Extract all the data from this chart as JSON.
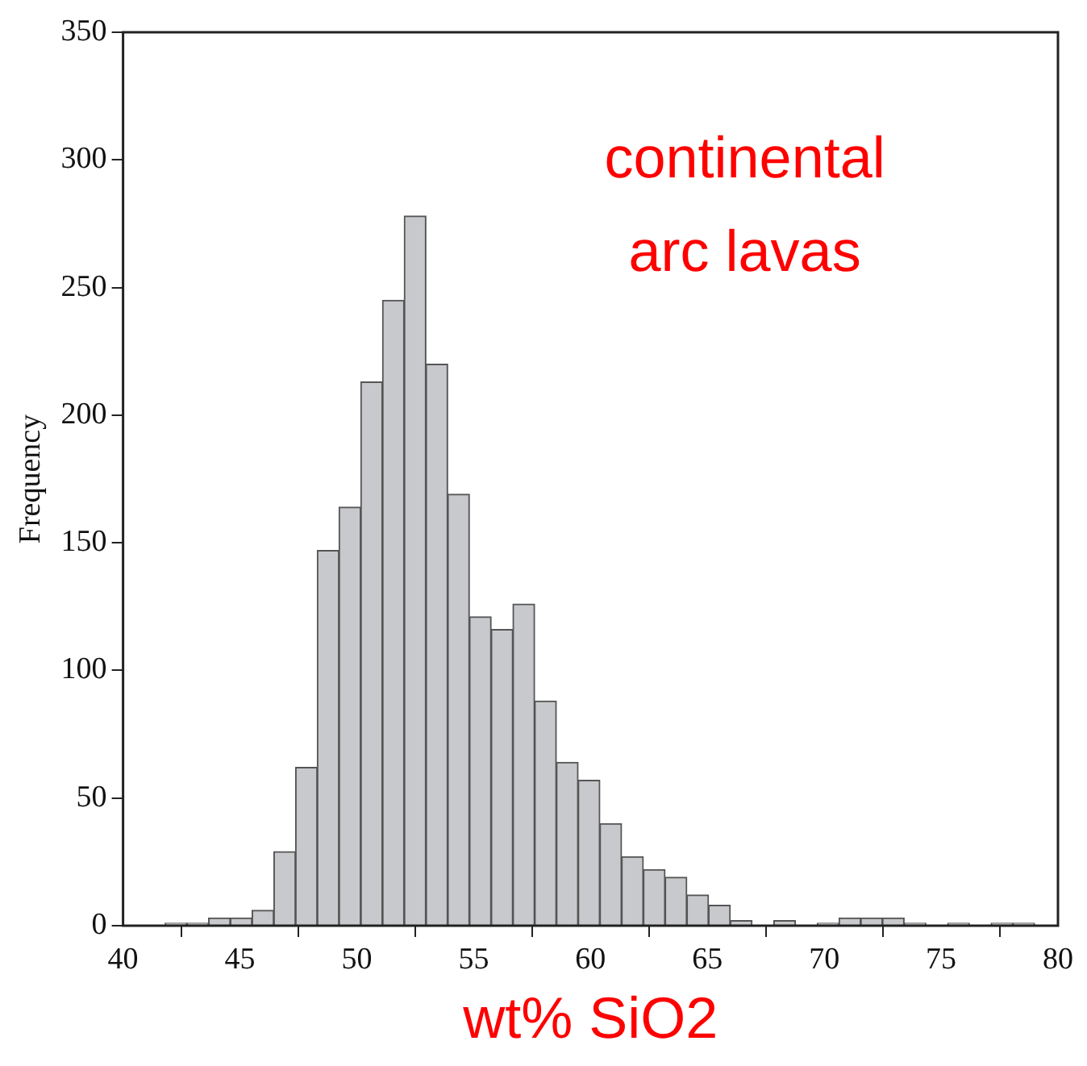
{
  "chart_data": {
    "type": "histogram",
    "bins": [
      41.8,
      42.73,
      43.66,
      44.59,
      45.52,
      46.45,
      47.38,
      48.31,
      49.24,
      50.17,
      51.1,
      52.03,
      52.96,
      53.89,
      54.82,
      55.75,
      56.68,
      57.61,
      58.54,
      59.47,
      60.4,
      61.33,
      62.26,
      63.19,
      64.12,
      65.05,
      65.98,
      66.91,
      67.84,
      68.77,
      69.7,
      70.63,
      71.56,
      72.49,
      73.42,
      74.35,
      75.28,
      76.21,
      77.14,
      78.07,
      79.0
    ],
    "values": [
      1,
      1,
      3,
      3,
      6,
      29,
      62,
      147,
      164,
      213,
      245,
      278,
      220,
      169,
      121,
      116,
      126,
      88,
      64,
      57,
      40,
      27,
      22,
      19,
      12,
      8,
      2,
      0,
      2,
      0,
      1,
      3,
      3,
      3,
      1,
      0,
      1,
      0,
      1,
      1
    ],
    "color": "#c8c9cc",
    "xlabel": "wt% SiO2",
    "ylabel": "Frequency",
    "annotations": [
      "continental\narc lavas"
    ],
    "xlim": [
      40,
      80
    ],
    "xticks": [
      40,
      45,
      50,
      55,
      60,
      65,
      70,
      75,
      80
    ],
    "ylim": [
      0,
      350
    ],
    "yticks": [
      0,
      50,
      100,
      150,
      200,
      250,
      300,
      350
    ],
    "grid": false,
    "legend": false
  }
}
